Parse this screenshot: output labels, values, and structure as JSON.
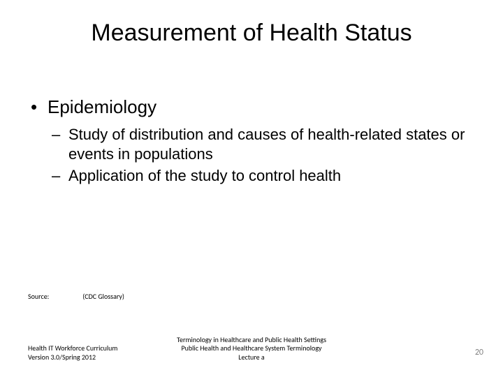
{
  "title": "Measurement of Health Status",
  "bullets": {
    "lvl1": [
      {
        "text": "Epidemiology",
        "children": [
          "Study of distribution and causes of health-related states or events in populations",
          "Application of the study to control health"
        ]
      }
    ]
  },
  "source": {
    "label": "Source:",
    "value": "(CDC Glossary)"
  },
  "footer": {
    "left_line1": "Health IT Workforce Curriculum",
    "left_line2": "Version 3.0/Spring 2012",
    "center_line1": "Terminology in Healthcare and Public Health Settings",
    "center_line2": "Public Health and Healthcare System Terminology",
    "center_line3": "Lecture a",
    "page_number": "20"
  },
  "colors": {
    "background": "#ffffff",
    "text": "#000000",
    "page_number": "#7f7f7f"
  },
  "fonts": {
    "title_family": "Verdana",
    "title_size_pt": 26,
    "body_family": "Arial",
    "body_lvl1_size_pt": 20,
    "body_lvl2_size_pt": 17,
    "footer_family": "Calibri",
    "footer_size_pt": 8
  }
}
